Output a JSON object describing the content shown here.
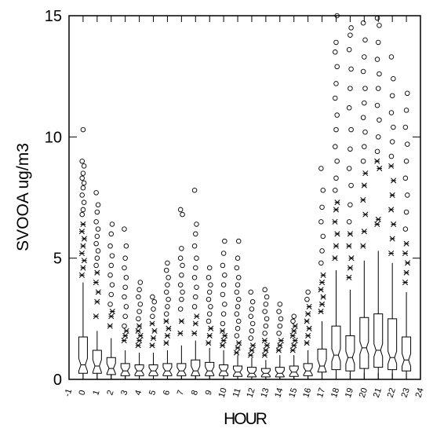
{
  "chart_data": {
    "type": "box",
    "title": "",
    "xlabel": "HOUR",
    "ylabel": "SVOOA ug/m3",
    "xlim": [
      -1,
      24
    ],
    "ylim": [
      0,
      15
    ],
    "x_tick_labels": [
      "-1",
      "0",
      "1",
      "2",
      "3",
      "4",
      "5",
      "6",
      "7",
      "8",
      "9",
      "10",
      "11",
      "12",
      "13",
      "14",
      "15",
      "16",
      "17",
      "18",
      "19",
      "20",
      "21",
      "22",
      "23",
      "24"
    ],
    "y_tick_labels": [
      "0",
      "5",
      "10",
      "15"
    ],
    "y_ticks": [
      0,
      5,
      10,
      15
    ],
    "notched": true,
    "outlier_markers": {
      "near": "asterisk",
      "far": "circle"
    },
    "boxes": [
      {
        "hour": 0,
        "q1": 0.25,
        "median": 0.6,
        "q3": 1.75,
        "whisker_low": 0.0,
        "whisker_high": 4.0,
        "near_outliers": [
          4.3,
          4.6,
          4.9,
          5.2,
          5.5,
          5.8,
          6.1,
          6.4
        ],
        "far_outliers": [
          6.8,
          7.0,
          7.3,
          7.6,
          7.9,
          8.1,
          8.3,
          8.5,
          8.8,
          9.0,
          10.3
        ]
      },
      {
        "hour": 1,
        "q1": 0.25,
        "median": 0.55,
        "q3": 1.2,
        "whisker_low": 0.0,
        "whisker_high": 2.0,
        "near_outliers": [
          2.6,
          3.2,
          3.6,
          4.0,
          4.4
        ],
        "far_outliers": [
          4.7,
          5.0,
          5.3,
          5.6,
          5.9,
          6.2,
          6.5,
          6.9,
          7.2,
          7.7
        ]
      },
      {
        "hour": 2,
        "q1": 0.2,
        "median": 0.45,
        "q3": 0.9,
        "whisker_low": 0.0,
        "whisker_high": 1.7,
        "near_outliers": [
          2.2,
          2.6,
          2.8
        ],
        "far_outliers": [
          3.1,
          3.5,
          3.9,
          4.3,
          4.7,
          5.1,
          5.5,
          6.0,
          6.4
        ]
      },
      {
        "hour": 3,
        "q1": 0.15,
        "median": 0.35,
        "q3": 0.65,
        "whisker_low": 0.0,
        "whisker_high": 1.2,
        "near_outliers": [
          1.6,
          1.8,
          2.0
        ],
        "far_outliers": [
          2.2,
          2.6,
          3.0,
          3.4,
          3.8,
          4.2,
          4.6,
          5.0,
          5.5,
          6.2
        ]
      },
      {
        "hour": 4,
        "q1": 0.15,
        "median": 0.35,
        "q3": 0.6,
        "whisker_low": 0.0,
        "whisker_high": 1.1,
        "near_outliers": [
          1.4,
          1.6,
          1.8,
          2.0,
          2.2
        ],
        "far_outliers": [
          2.5,
          2.8,
          3.1,
          3.4,
          3.7,
          4.0
        ]
      },
      {
        "hour": 5,
        "q1": 0.15,
        "median": 0.35,
        "q3": 0.6,
        "whisker_low": 0.0,
        "whisker_high": 1.1,
        "near_outliers": [
          1.4,
          1.7,
          2.0,
          2.3
        ],
        "far_outliers": [
          2.6,
          2.9,
          3.2,
          3.4
        ]
      },
      {
        "hour": 6,
        "q1": 0.15,
        "median": 0.35,
        "q3": 0.65,
        "whisker_low": 0.0,
        "whisker_high": 1.2,
        "near_outliers": [
          1.5,
          1.8,
          2.1,
          2.4
        ],
        "far_outliers": [
          2.7,
          3.0,
          3.3,
          3.6,
          3.9,
          4.2,
          4.5,
          4.8
        ]
      },
      {
        "hour": 7,
        "q1": 0.15,
        "median": 0.35,
        "q3": 0.65,
        "whisker_low": 0.0,
        "whisker_high": 1.4,
        "near_outliers": [
          1.9,
          2.4
        ],
        "far_outliers": [
          2.9,
          3.3,
          3.6,
          3.9,
          4.3,
          4.7,
          5.0,
          5.4,
          6.8,
          7.0
        ]
      },
      {
        "hour": 8,
        "q1": 0.15,
        "median": 0.35,
        "q3": 0.8,
        "whisker_low": 0.0,
        "whisker_high": 1.6,
        "near_outliers": [
          1.9,
          2.3,
          2.6
        ],
        "far_outliers": [
          3.0,
          3.4,
          3.8,
          4.2,
          4.6,
          5.0,
          5.5,
          6.0,
          6.4,
          7.8
        ]
      },
      {
        "hour": 9,
        "q1": 0.15,
        "median": 0.35,
        "q3": 0.7,
        "whisker_low": 0.0,
        "whisker_high": 1.3,
        "near_outliers": [
          1.5,
          1.8,
          2.1
        ],
        "far_outliers": [
          2.4,
          2.7,
          3.0,
          3.3,
          3.6,
          3.9,
          4.2,
          4.6
        ]
      },
      {
        "hour": 10,
        "q1": 0.15,
        "median": 0.35,
        "q3": 0.6,
        "whisker_low": 0.0,
        "whisker_high": 1.2,
        "near_outliers": [
          1.4,
          1.6,
          1.8,
          2.0
        ],
        "far_outliers": [
          2.3,
          2.7,
          3.1,
          3.5,
          3.9,
          4.3,
          4.7,
          5.2,
          5.7
        ]
      },
      {
        "hour": 11,
        "q1": 0.12,
        "median": 0.3,
        "q3": 0.55,
        "whisker_low": 0.0,
        "whisker_high": 1.0,
        "near_outliers": [
          1.1,
          1.3,
          1.5
        ],
        "far_outliers": [
          1.8,
          2.1,
          2.4,
          2.7,
          3.0,
          3.3,
          3.6,
          3.9,
          4.2,
          4.6,
          5.0,
          5.7
        ]
      },
      {
        "hour": 12,
        "q1": 0.1,
        "median": 0.25,
        "q3": 0.5,
        "whisker_low": 0.0,
        "whisker_high": 0.9,
        "near_outliers": [
          1.0,
          1.2,
          1.4
        ],
        "far_outliers": [
          1.7,
          2.0,
          2.3,
          2.6,
          2.9,
          3.2,
          3.6
        ]
      },
      {
        "hour": 13,
        "q1": 0.1,
        "median": 0.25,
        "q3": 0.45,
        "whisker_low": 0.0,
        "whisker_high": 0.8,
        "near_outliers": [
          1.0,
          1.2,
          1.4,
          1.6
        ],
        "far_outliers": [
          1.9,
          2.2,
          2.5,
          2.8,
          3.1,
          3.4,
          3.7
        ]
      },
      {
        "hour": 14,
        "q1": 0.1,
        "median": 0.25,
        "q3": 0.5,
        "whisker_low": 0.0,
        "whisker_high": 1.0,
        "near_outliers": [
          1.2,
          1.4,
          1.6
        ],
        "far_outliers": [
          1.9,
          2.2,
          2.5,
          2.8,
          3.1
        ]
      },
      {
        "hour": 15,
        "q1": 0.12,
        "median": 0.3,
        "q3": 0.55,
        "whisker_low": 0.0,
        "whisker_high": 1.0,
        "near_outliers": [
          1.2,
          1.4,
          1.6,
          1.8,
          2.0,
          2.2
        ],
        "far_outliers": [
          2.4,
          2.6
        ]
      },
      {
        "hour": 16,
        "q1": 0.15,
        "median": 0.35,
        "q3": 0.65,
        "whisker_low": 0.0,
        "whisker_high": 1.2,
        "near_outliers": [
          1.5,
          1.8,
          2.1,
          2.4,
          2.7,
          3.0
        ],
        "far_outliers": [
          3.3,
          3.6
        ]
      },
      {
        "hour": 17,
        "q1": 0.3,
        "median": 0.55,
        "q3": 1.25,
        "whisker_low": 0.0,
        "whisker_high": 2.4,
        "near_outliers": [
          2.8,
          3.1,
          3.4,
          3.7,
          4.0,
          4.3
        ],
        "far_outliers": [
          4.8,
          5.3,
          5.9,
          6.5,
          7.1,
          7.8,
          8.7
        ]
      },
      {
        "hour": 18,
        "q1": 0.4,
        "median": 1.0,
        "q3": 2.2,
        "whisker_low": 0.0,
        "whisker_high": 4.5,
        "near_outliers": [
          5.0,
          5.5,
          6.0,
          6.5,
          7.0,
          7.3
        ],
        "far_outliers": [
          7.8,
          8.3,
          9.0,
          9.6,
          10.3,
          10.9,
          11.6,
          12.2,
          12.9,
          13.5,
          13.9,
          15.0
        ]
      },
      {
        "hour": 19,
        "q1": 0.35,
        "median": 0.9,
        "q3": 1.8,
        "whisker_low": 0.0,
        "whisker_high": 3.7,
        "near_outliers": [
          4.2,
          4.6,
          5.0,
          5.5,
          6.0
        ],
        "far_outliers": [
          6.5,
          7.2,
          8.0,
          8.7,
          9.5,
          10.3,
          11.2,
          12.0,
          12.8,
          13.6,
          14.2,
          14.5
        ]
      },
      {
        "hour": 20,
        "q1": 0.45,
        "median": 1.3,
        "q3": 2.55,
        "whisker_low": 0.0,
        "whisker_high": 4.9,
        "near_outliers": [
          5.5,
          6.1,
          6.8,
          7.4,
          8.0,
          8.5
        ],
        "far_outliers": [
          9.0,
          9.6,
          10.2,
          10.8,
          11.4,
          12.0,
          12.7,
          13.3,
          14.0,
          14.7
        ]
      },
      {
        "hour": 21,
        "q1": 0.5,
        "median": 1.2,
        "q3": 2.7,
        "whisker_low": 0.0,
        "whisker_high": 5.3,
        "near_outliers": [
          6.4,
          6.6,
          8.7,
          9.0
        ],
        "far_outliers": [
          9.4,
          10.0,
          10.7,
          11.3,
          12.0,
          12.6,
          13.2,
          13.9,
          14.6,
          14.9
        ]
      },
      {
        "hour": 22,
        "q1": 0.4,
        "median": 0.9,
        "q3": 2.5,
        "whisker_low": 0.0,
        "whisker_high": 4.8,
        "near_outliers": [
          5.2,
          5.8,
          6.4,
          7.0,
          7.6,
          8.2,
          8.8
        ],
        "far_outliers": [
          9.2,
          9.8,
          10.4,
          11.0,
          11.7,
          12.4,
          13.3
        ]
      },
      {
        "hour": 23,
        "q1": 0.35,
        "median": 0.8,
        "q3": 1.75,
        "whisker_low": 0.0,
        "whisker_high": 3.6,
        "near_outliers": [
          4.0,
          4.4,
          4.8,
          5.2,
          5.6
        ],
        "far_outliers": [
          6.2,
          6.9,
          7.6,
          8.3,
          9.0,
          9.7,
          10.4,
          11.1,
          11.8
        ]
      }
    ]
  }
}
